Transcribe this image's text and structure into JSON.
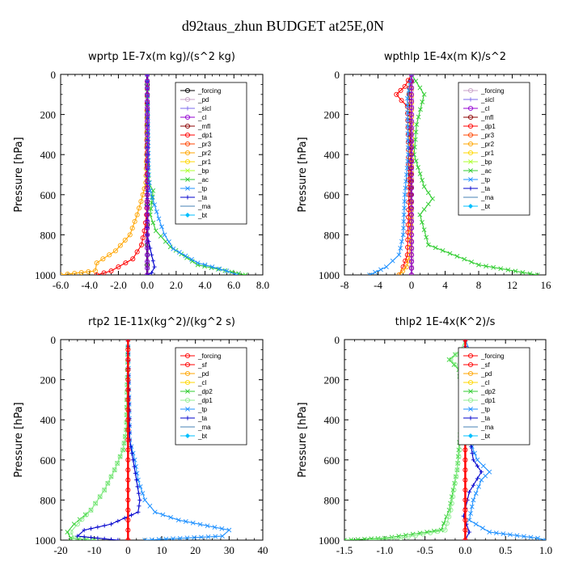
{
  "figure": {
    "title": "d92taus_zhun  BUDGET at25E,0N"
  },
  "chart_data": [
    {
      "id": "wprtp",
      "type": "line",
      "title": "wprtp  1E-7x(m kg)/(s^2 kg)",
      "ylabel": "Pressure [hPa]",
      "xlim": [
        -6,
        8
      ],
      "ylim": [
        0,
        1000
      ],
      "y_inverted": true,
      "xticks": [
        -6,
        -4,
        -2,
        0,
        2,
        4,
        6,
        8
      ],
      "xtick_labels": [
        "-6.0",
        "-4.0",
        "-2.0",
        "0.0",
        "2.0",
        "4.0",
        "6.0",
        "8.0"
      ],
      "yticks": [
        0,
        200,
        400,
        600,
        800,
        1000
      ],
      "legend": [
        "_forcing",
        "_pd",
        "_sicl",
        "_cl",
        "_mfl",
        "_dp1",
        "_pr3",
        "_pr2",
        "_pr1",
        "_bp",
        "_ac",
        "_tp",
        "_ta",
        "_ma",
        "_bt"
      ],
      "series": [
        {
          "name": "_forcing",
          "color": "#000000",
          "marker": "circle",
          "y": [
            0,
            100,
            200,
            300,
            400,
            500,
            600,
            700,
            800,
            900,
            1000
          ],
          "x": [
            0,
            0,
            0,
            0,
            0,
            0,
            0,
            0,
            0,
            0,
            0
          ]
        },
        {
          "name": "_sicl",
          "color": "#7b68ee",
          "marker": "plus",
          "y": [
            0,
            200,
            400,
            600,
            800,
            1000
          ],
          "x": [
            0,
            0,
            0,
            0,
            0,
            0
          ]
        },
        {
          "name": "_pr2",
          "color": "#ffa500",
          "marker": "circle",
          "y": [
            0,
            400,
            540,
            600,
            700,
            800,
            880,
            940,
            980,
            1000
          ],
          "x": [
            0,
            -0.05,
            -0.1,
            -0.3,
            -0.7,
            -1.2,
            -2.2,
            -3.5,
            -3.6,
            -6.0
          ]
        },
        {
          "name": "_dp1",
          "color": "#ff0000",
          "marker": "circle",
          "y": [
            0,
            600,
            700,
            780,
            850,
            920,
            980,
            1000
          ],
          "x": [
            0,
            0,
            -0.05,
            -0.2,
            -0.4,
            -1.0,
            -2.5,
            -3.5
          ]
        },
        {
          "name": "_ac",
          "color": "#32cd32",
          "marker": "x",
          "y": [
            0,
            400,
            540,
            580,
            640,
            700,
            780,
            860,
            950,
            1000
          ],
          "x": [
            0,
            0,
            0.1,
            0.4,
            0.3,
            0.2,
            0.6,
            1.6,
            3.5,
            6.8
          ]
        },
        {
          "name": "_tp",
          "color": "#1e90ff",
          "marker": "x",
          "y": [
            0,
            500,
            580,
            650,
            720,
            800,
            870,
            940,
            980,
            1000
          ],
          "x": [
            0,
            0.1,
            0.2,
            0.5,
            0.8,
            1.2,
            1.8,
            3.5,
            5.5,
            6.2
          ]
        },
        {
          "name": "_ta",
          "color": "#0000cd",
          "marker": "plus",
          "y": [
            0,
            800,
            900,
            960,
            990,
            1000
          ],
          "x": [
            0,
            0,
            0.3,
            0.5,
            0.3,
            0
          ]
        },
        {
          "name": "_cl",
          "color": "#9400d3",
          "marker": "circle",
          "y": [
            0,
            200,
            400,
            600,
            800,
            1000
          ],
          "x": [
            0,
            0,
            0,
            0,
            0,
            0
          ]
        }
      ]
    },
    {
      "id": "wpthlp",
      "type": "line",
      "title": "wpthlp  1E-4x(m K)/s^2",
      "ylabel": "Pressure [hPa]",
      "xlim": [
        -8,
        16
      ],
      "ylim": [
        0,
        1000
      ],
      "y_inverted": true,
      "xticks": [
        -8,
        -4,
        0,
        4,
        8,
        12,
        16
      ],
      "xtick_labels": [
        "-8",
        "-4",
        "0",
        "4",
        "8",
        "12",
        "16"
      ],
      "yticks": [
        0,
        200,
        400,
        600,
        800,
        1000
      ],
      "legend": [
        "_forcing",
        "_sicl",
        "_cl",
        "_mfl",
        "_dp1",
        "_pr3",
        "_pr2",
        "_pr1",
        "_bp",
        "_ac",
        "_tp",
        "_ta",
        "_ma",
        "_bt"
      ],
      "series": [
        {
          "name": "_forcing",
          "color": "#c8a2c8",
          "marker": "circle",
          "y": [
            0,
            200,
            400,
            600,
            800,
            1000
          ],
          "x": [
            0,
            0,
            0,
            0,
            0,
            0
          ]
        },
        {
          "name": "_dp1",
          "color": "#ff0000",
          "marker": "circle",
          "y": [
            0,
            60,
            100,
            130,
            160,
            300,
            600,
            900,
            960,
            1000
          ],
          "x": [
            0,
            -0.8,
            -1.8,
            -1.2,
            -0.5,
            -0.4,
            -0.3,
            -0.5,
            -1.0,
            -1.5
          ]
        },
        {
          "name": "_mfl",
          "color": "#8b0000",
          "marker": "circle",
          "y": [
            0,
            100,
            200,
            400,
            600,
            800,
            1000
          ],
          "x": [
            0,
            -0.3,
            -0.2,
            -0.1,
            -0.1,
            0,
            0
          ]
        },
        {
          "name": "_ac",
          "color": "#32cd32",
          "marker": "x",
          "y": [
            0,
            100,
            250,
            400,
            560,
            620,
            700,
            850,
            950,
            1000
          ],
          "x": [
            0,
            1.5,
            0.6,
            0.3,
            1.5,
            2.5,
            1.0,
            2.0,
            8.0,
            15.0
          ]
        },
        {
          "name": "_tp",
          "color": "#1e90ff",
          "marker": "x",
          "y": [
            0,
            120,
            400,
            600,
            800,
            900,
            960,
            1000
          ],
          "x": [
            0,
            -0.5,
            -0.4,
            -0.8,
            -1.0,
            -1.5,
            -3.0,
            -5.0
          ]
        },
        {
          "name": "_pr2",
          "color": "#ffa500",
          "marker": "circle",
          "y": [
            0,
            600,
            900,
            960,
            1000
          ],
          "x": [
            0,
            0,
            -0.2,
            -0.6,
            -1.5
          ]
        },
        {
          "name": "_cl",
          "color": "#9400d3",
          "marker": "circle",
          "y": [
            0,
            200,
            400,
            600,
            800,
            1000
          ],
          "x": [
            0,
            0,
            0,
            0,
            0,
            0
          ]
        }
      ]
    },
    {
      "id": "rtp2",
      "type": "line",
      "title": "rtp2  1E-11x(kg^2)/(kg^2 s)",
      "ylabel": "Pressure [hPa]",
      "xlim": [
        -20,
        40
      ],
      "ylim": [
        0,
        1000
      ],
      "y_inverted": true,
      "xticks": [
        -20,
        -10,
        0,
        10,
        20,
        30,
        40
      ],
      "xtick_labels": [
        "-20",
        "-10",
        "0",
        "10",
        "20",
        "30",
        "40"
      ],
      "yticks": [
        0,
        200,
        400,
        600,
        800,
        1000
      ],
      "legend": [
        "_forcing",
        "_sf",
        "_pd",
        "_cl",
        "_dp2",
        "_dp1",
        "_tp",
        "_ta",
        "_ma",
        "_bt"
      ],
      "series": [
        {
          "name": "_dp2",
          "color": "#32cd32",
          "marker": "x",
          "y": [
            0,
            450,
            550,
            650,
            750,
            850,
            920,
            960,
            990,
            1000
          ],
          "x": [
            0,
            -0.5,
            -1.5,
            -4,
            -7,
            -11,
            -16,
            -18,
            -17,
            -10
          ]
        },
        {
          "name": "_dp1",
          "color": "#90ee90",
          "marker": "circle",
          "y": [
            0,
            450,
            550,
            650,
            750,
            850,
            920,
            960,
            990,
            1000
          ],
          "x": [
            0,
            -0.5,
            -1.5,
            -4,
            -7,
            -11,
            -15,
            -17,
            -16,
            -9
          ]
        },
        {
          "name": "_tp",
          "color": "#1e90ff",
          "marker": "x",
          "y": [
            0,
            500,
            600,
            700,
            800,
            860,
            900,
            950,
            980,
            1000
          ],
          "x": [
            0,
            0.5,
            2,
            3,
            5,
            8,
            15,
            30,
            28,
            5
          ]
        },
        {
          "name": "_ta",
          "color": "#0000cd",
          "marker": "plus",
          "y": [
            0,
            500,
            600,
            700,
            800,
            860,
            920,
            950,
            980,
            1000
          ],
          "x": [
            0,
            0.5,
            1.5,
            2.5,
            3.5,
            3.0,
            -5,
            -13,
            -15,
            -3
          ]
        },
        {
          "name": "_forcing",
          "color": "#ff0000",
          "marker": "circle",
          "y": [
            0,
            100,
            200,
            300,
            400,
            500,
            600,
            700,
            800,
            900,
            1000
          ],
          "x": [
            0,
            0,
            0,
            0,
            0,
            0,
            0,
            0,
            0,
            0,
            0
          ]
        }
      ]
    },
    {
      "id": "thlp2",
      "type": "line",
      "title": "thlp2  1E-4x(K^2)/s",
      "ylabel": "Pressure [hPa]",
      "xlim": [
        -1.5,
        1.0
      ],
      "ylim": [
        0,
        1000
      ],
      "y_inverted": true,
      "xticks": [
        -1.5,
        -1.0,
        -0.5,
        0.0,
        0.5,
        1.0
      ],
      "xtick_labels": [
        "-1.5",
        "-1.0",
        "-0.5",
        "0.0",
        "0.5",
        "1.0"
      ],
      "yticks": [
        0,
        200,
        400,
        600,
        800,
        1000
      ],
      "legend": [
        "_forcing",
        "_sf",
        "_pd",
        "_cl",
        "_dp2",
        "_dp1",
        "_tp",
        "_ta",
        "_ma",
        "_bt"
      ],
      "series": [
        {
          "name": "_dp2",
          "color": "#32cd32",
          "marker": "x",
          "y": [
            0,
            50,
            100,
            150,
            250,
            400,
            550,
            650,
            750,
            850,
            950,
            990,
            1000
          ],
          "x": [
            0,
            -0.05,
            -0.2,
            -0.08,
            -0.05,
            -0.05,
            -0.08,
            -0.1,
            -0.15,
            -0.2,
            -0.3,
            -1.0,
            -1.5
          ]
        },
        {
          "name": "_dp1",
          "color": "#90ee90",
          "marker": "circle",
          "y": [
            0,
            50,
            100,
            150,
            250,
            400,
            550,
            650,
            750,
            850,
            950,
            990,
            1000
          ],
          "x": [
            0,
            -0.05,
            -0.18,
            -0.07,
            -0.05,
            -0.05,
            -0.07,
            -0.1,
            -0.14,
            -0.18,
            -0.25,
            -0.8,
            -1.2
          ]
        },
        {
          "name": "_tp",
          "color": "#1e90ff",
          "marker": "x",
          "y": [
            0,
            50,
            150,
            300,
            500,
            600,
            660,
            700,
            800,
            900,
            960,
            990,
            1000
          ],
          "x": [
            0,
            0.05,
            0.05,
            0.02,
            0.05,
            0.15,
            0.3,
            0.2,
            0.1,
            0.05,
            0.3,
            0.9,
            1.0
          ]
        },
        {
          "name": "_ta",
          "color": "#0000cd",
          "marker": "plus",
          "y": [
            0,
            200,
            400,
            600,
            660,
            760,
            880,
            960,
            1000
          ],
          "x": [
            0,
            0.02,
            0.02,
            0.1,
            0.2,
            0.05,
            -0.02,
            0.05,
            0.0
          ]
        },
        {
          "name": "_forcing",
          "color": "#ff0000",
          "marker": "circle",
          "y": [
            0,
            100,
            200,
            300,
            400,
            500,
            600,
            700,
            800,
            900,
            1000
          ],
          "x": [
            0,
            0,
            0,
            0,
            0,
            0,
            0,
            0,
            0,
            0,
            0
          ]
        }
      ]
    }
  ],
  "legend_styles": {
    "_forcing": {
      "color": "#000000",
      "marker": "circle"
    },
    "_pd": {
      "color": "#c8a2c8",
      "marker": "circle"
    },
    "_sicl": {
      "color": "#7b68ee",
      "marker": "plus"
    },
    "_cl": {
      "color": "#9400d3",
      "marker": "circle"
    },
    "_mfl": {
      "color": "#8b0000",
      "marker": "circle"
    },
    "_dp1": {
      "color": "#ff0000",
      "marker": "circle"
    },
    "_pr3": {
      "color": "#ff4500",
      "marker": "circle"
    },
    "_pr2": {
      "color": "#ffa500",
      "marker": "circle"
    },
    "_pr1": {
      "color": "#ffd700",
      "marker": "circle"
    },
    "_bp": {
      "color": "#adff2f",
      "marker": "x"
    },
    "_ac": {
      "color": "#32cd32",
      "marker": "x"
    },
    "_tp": {
      "color": "#1e90ff",
      "marker": "x"
    },
    "_ta": {
      "color": "#0000cd",
      "marker": "plus"
    },
    "_ma": {
      "color": "#4682b4",
      "marker": "none"
    },
    "_bt": {
      "color": "#00bfff",
      "marker": "diamond"
    },
    "_sf": {
      "color": "#ff0000",
      "marker": "circle"
    },
    "_dp2": {
      "color": "#32cd32",
      "marker": "x"
    }
  },
  "legend_overrides": {
    "rtp2": {
      "_forcing": {
        "color": "#ff0000"
      },
      "_dp1": {
        "color": "#90ee90"
      },
      "_pd": {
        "color": "#ffa500"
      },
      "_cl": {
        "color": "#ffd700"
      }
    },
    "thlp2": {
      "_forcing": {
        "color": "#ff0000"
      },
      "_dp1": {
        "color": "#90ee90"
      },
      "_pd": {
        "color": "#ffa500"
      },
      "_cl": {
        "color": "#ffd700"
      }
    },
    "wpthlp": {
      "_forcing": {
        "color": "#c8a2c8"
      }
    }
  }
}
